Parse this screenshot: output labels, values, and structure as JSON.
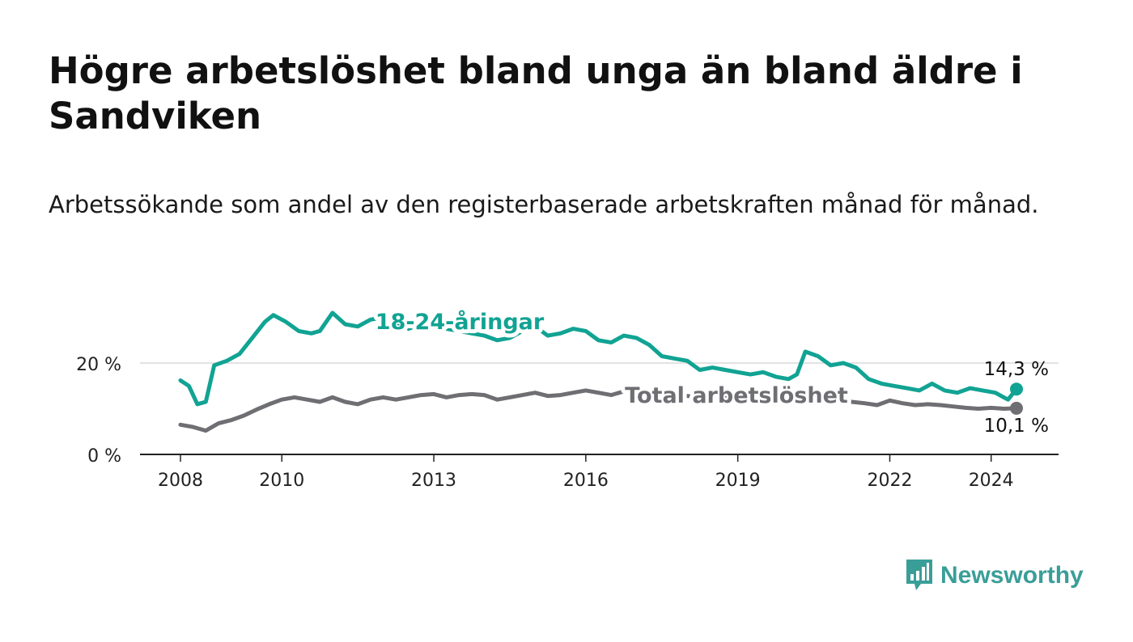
{
  "title": "Högre arbetslöshet bland unga än bland äldre i Sandviken",
  "subtitle": "Arbetssökande som andel av den registerbaserade arbetskraften månad för månad.",
  "brand": {
    "name": "Newsworthy",
    "icon": "newsworthy-logo-icon",
    "color": "#3a9e98"
  },
  "chart_data": {
    "type": "line",
    "x_start": "2008-01",
    "x_end": "2024-07",
    "x_ticks": [
      "2008",
      "2010",
      "2013",
      "2016",
      "2019",
      "2022",
      "2024"
    ],
    "y_ticks": [
      "0 %",
      "20 %"
    ],
    "ylim": [
      0,
      35
    ],
    "grid": "y at 20 %",
    "series": [
      {
        "name": "18-24-åringar",
        "color": "#11a393",
        "end_label": "14,3 %",
        "points": [
          [
            "2008-01",
            16.2
          ],
          [
            "2008-03",
            15.0
          ],
          [
            "2008-05",
            11.0
          ],
          [
            "2008-07",
            11.5
          ],
          [
            "2008-09",
            19.5
          ],
          [
            "2008-12",
            20.5
          ],
          [
            "2009-03",
            22.0
          ],
          [
            "2009-06",
            25.5
          ],
          [
            "2009-09",
            29.0
          ],
          [
            "2009-11",
            30.5
          ],
          [
            "2010-02",
            29.0
          ],
          [
            "2010-05",
            27.0
          ],
          [
            "2010-08",
            26.5
          ],
          [
            "2010-10",
            27.0
          ],
          [
            "2011-01",
            31.0
          ],
          [
            "2011-04",
            28.5
          ],
          [
            "2011-07",
            28.0
          ],
          [
            "2011-10",
            29.5
          ],
          [
            "2012-01",
            30.0
          ],
          [
            "2012-04",
            29.0
          ],
          [
            "2012-07",
            27.5
          ],
          [
            "2012-10",
            28.5
          ],
          [
            "2013-01",
            28.0
          ],
          [
            "2013-04",
            27.5
          ],
          [
            "2013-07",
            27.0
          ],
          [
            "2013-10",
            26.5
          ],
          [
            "2014-01",
            26.0
          ],
          [
            "2014-04",
            25.0
          ],
          [
            "2014-07",
            25.5
          ],
          [
            "2014-10",
            27.0
          ],
          [
            "2015-01",
            28.0
          ],
          [
            "2015-04",
            26.0
          ],
          [
            "2015-07",
            26.5
          ],
          [
            "2015-10",
            27.5
          ],
          [
            "2016-01",
            27.0
          ],
          [
            "2016-04",
            25.0
          ],
          [
            "2016-07",
            24.5
          ],
          [
            "2016-10",
            26.0
          ],
          [
            "2017-01",
            25.5
          ],
          [
            "2017-04",
            24.0
          ],
          [
            "2017-07",
            21.5
          ],
          [
            "2017-10",
            21.0
          ],
          [
            "2018-01",
            20.5
          ],
          [
            "2018-04",
            18.5
          ],
          [
            "2018-07",
            19.0
          ],
          [
            "2018-10",
            18.5
          ],
          [
            "2019-01",
            18.0
          ],
          [
            "2019-04",
            17.5
          ],
          [
            "2019-07",
            18.0
          ],
          [
            "2019-10",
            17.0
          ],
          [
            "2020-01",
            16.5
          ],
          [
            "2020-03",
            17.5
          ],
          [
            "2020-05",
            22.5
          ],
          [
            "2020-08",
            21.5
          ],
          [
            "2020-11",
            19.5
          ],
          [
            "2021-02",
            20.0
          ],
          [
            "2021-05",
            19.0
          ],
          [
            "2021-08",
            16.5
          ],
          [
            "2021-11",
            15.5
          ],
          [
            "2022-02",
            15.0
          ],
          [
            "2022-05",
            14.5
          ],
          [
            "2022-08",
            14.0
          ],
          [
            "2022-11",
            15.5
          ],
          [
            "2023-02",
            14.0
          ],
          [
            "2023-05",
            13.5
          ],
          [
            "2023-08",
            14.5
          ],
          [
            "2023-11",
            14.0
          ],
          [
            "2024-02",
            13.5
          ],
          [
            "2024-04",
            12.5
          ],
          [
            "2024-05",
            12.0
          ],
          [
            "2024-07",
            14.3
          ]
        ]
      },
      {
        "name": "Total arbetslöshet",
        "color": "#6e6e73",
        "end_label": "10,1 %",
        "points": [
          [
            "2008-01",
            6.5
          ],
          [
            "2008-04",
            6.0
          ],
          [
            "2008-07",
            5.2
          ],
          [
            "2008-10",
            6.8
          ],
          [
            "2009-01",
            7.5
          ],
          [
            "2009-04",
            8.5
          ],
          [
            "2009-07",
            9.8
          ],
          [
            "2009-10",
            11.0
          ],
          [
            "2010-01",
            12.0
          ],
          [
            "2010-04",
            12.5
          ],
          [
            "2010-07",
            12.0
          ],
          [
            "2010-10",
            11.5
          ],
          [
            "2011-01",
            12.5
          ],
          [
            "2011-04",
            11.5
          ],
          [
            "2011-07",
            11.0
          ],
          [
            "2011-10",
            12.0
          ],
          [
            "2012-01",
            12.5
          ],
          [
            "2012-04",
            12.0
          ],
          [
            "2012-07",
            12.5
          ],
          [
            "2012-10",
            13.0
          ],
          [
            "2013-01",
            13.2
          ],
          [
            "2013-04",
            12.5
          ],
          [
            "2013-07",
            13.0
          ],
          [
            "2013-10",
            13.2
          ],
          [
            "2014-01",
            13.0
          ],
          [
            "2014-04",
            12.0
          ],
          [
            "2014-07",
            12.5
          ],
          [
            "2014-10",
            13.0
          ],
          [
            "2015-01",
            13.5
          ],
          [
            "2015-04",
            12.8
          ],
          [
            "2015-07",
            13.0
          ],
          [
            "2015-10",
            13.5
          ],
          [
            "2016-01",
            14.0
          ],
          [
            "2016-04",
            13.5
          ],
          [
            "2016-07",
            13.0
          ],
          [
            "2016-10",
            13.8
          ],
          [
            "2017-01",
            14.0
          ],
          [
            "2017-04",
            13.5
          ],
          [
            "2017-07",
            13.0
          ],
          [
            "2017-10",
            12.8
          ],
          [
            "2018-01",
            12.8
          ],
          [
            "2018-04",
            12.5
          ],
          [
            "2018-07",
            12.3
          ],
          [
            "2018-10",
            12.5
          ],
          [
            "2019-01",
            12.5
          ],
          [
            "2019-04",
            12.0
          ],
          [
            "2019-07",
            12.2
          ],
          [
            "2019-10",
            12.0
          ],
          [
            "2020-01",
            11.8
          ],
          [
            "2020-04",
            12.8
          ],
          [
            "2020-07",
            12.5
          ],
          [
            "2020-10",
            12.2
          ],
          [
            "2021-01",
            12.0
          ],
          [
            "2021-04",
            11.5
          ],
          [
            "2021-07",
            11.2
          ],
          [
            "2021-10",
            10.8
          ],
          [
            "2022-01",
            11.8
          ],
          [
            "2022-04",
            11.2
          ],
          [
            "2022-07",
            10.8
          ],
          [
            "2022-10",
            11.0
          ],
          [
            "2023-01",
            10.8
          ],
          [
            "2023-04",
            10.5
          ],
          [
            "2023-07",
            10.2
          ],
          [
            "2023-10",
            10.0
          ],
          [
            "2024-01",
            10.2
          ],
          [
            "2024-04",
            10.0
          ],
          [
            "2024-07",
            10.1
          ]
        ]
      }
    ]
  }
}
